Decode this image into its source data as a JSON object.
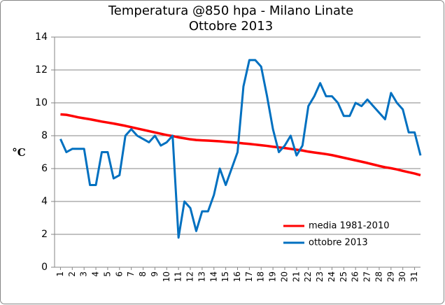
{
  "chart_data": {
    "type": "line",
    "title": "Temperatura @850 hpa - Milano Linate",
    "subtitle": "Ottobre 2013",
    "y_label": "°C",
    "x": [
      1,
      1.5,
      2,
      2.5,
      3,
      3.5,
      4,
      4.5,
      5,
      5.5,
      6,
      6.5,
      7,
      7.5,
      8,
      8.5,
      9,
      9.5,
      10,
      10.5,
      11,
      11.5,
      12,
      12.5,
      13,
      13.5,
      14,
      14.5,
      15,
      15.5,
      16,
      16.5,
      17,
      17.5,
      18,
      18.5,
      19,
      19.5,
      20,
      20.5,
      21,
      21.5,
      22,
      22.5,
      23,
      23.5,
      24,
      24.5,
      25,
      25.5,
      26,
      26.5,
      27,
      27.5,
      28,
      28.5,
      29,
      29.5,
      30,
      30.5,
      31,
      31.5
    ],
    "xlim": [
      0.5,
      31.5
    ],
    "xticks": [
      1,
      2,
      3,
      4,
      5,
      6,
      7,
      8,
      9,
      10,
      11,
      12,
      13,
      14,
      15,
      16,
      17,
      18,
      19,
      20,
      21,
      22,
      23,
      24,
      25,
      26,
      27,
      28,
      29,
      30,
      31
    ],
    "ylim": [
      0,
      14
    ],
    "yticks": [
      0,
      2,
      4,
      6,
      8,
      10,
      12,
      14
    ],
    "grid": true,
    "legend": "lower right",
    "series": [
      {
        "name": "media 1981-2010",
        "color": "#ff0000",
        "values": [
          9.3,
          9.27,
          9.2,
          9.12,
          9.06,
          9.0,
          8.93,
          8.86,
          8.8,
          8.74,
          8.67,
          8.6,
          8.52,
          8.44,
          8.36,
          8.28,
          8.2,
          8.12,
          8.04,
          7.98,
          7.9,
          7.84,
          7.78,
          7.74,
          7.72,
          7.7,
          7.68,
          7.66,
          7.63,
          7.6,
          7.57,
          7.53,
          7.5,
          7.46,
          7.42,
          7.38,
          7.33,
          7.29,
          7.25,
          7.2,
          7.15,
          7.1,
          7.03,
          6.98,
          6.93,
          6.88,
          6.82,
          6.74,
          6.66,
          6.58,
          6.5,
          6.42,
          6.34,
          6.25,
          6.16,
          6.08,
          6.02,
          5.95,
          5.86,
          5.78,
          5.7,
          5.6
        ]
      },
      {
        "name": "ottobre 2013",
        "color": "#0070c0",
        "values": [
          7.8,
          7.0,
          7.2,
          7.2,
          7.2,
          5.0,
          5.0,
          7.0,
          7.0,
          5.4,
          5.6,
          8.0,
          8.4,
          8.0,
          7.8,
          7.6,
          8.0,
          7.4,
          7.6,
          8.0,
          1.8,
          4.0,
          3.6,
          2.2,
          3.4,
          3.4,
          4.4,
          6.0,
          5.0,
          6.0,
          7.0,
          11.0,
          12.6,
          12.6,
          12.2,
          10.4,
          8.4,
          7.0,
          7.4,
          8.0,
          6.8,
          7.4,
          9.8,
          10.4,
          11.2,
          10.4,
          10.4,
          10.0,
          9.2,
          9.2,
          10.0,
          9.8,
          10.2,
          9.8,
          9.4,
          9.0,
          10.6,
          10.0,
          9.6,
          8.2,
          8.2,
          6.8
        ]
      }
    ]
  }
}
